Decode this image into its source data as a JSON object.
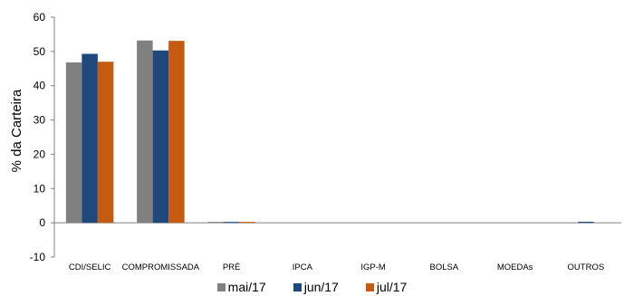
{
  "chart_data": {
    "type": "bar",
    "ylabel": "% da Carteira",
    "ylim": [
      -10,
      60
    ],
    "yticks": [
      -10,
      0,
      10,
      20,
      30,
      40,
      50,
      60
    ],
    "categories": [
      "CDI/SELIC",
      "COMPROMISSADA",
      "PRÉ",
      "IPCA",
      "IGP-M",
      "BOLSA",
      "MOEDAs",
      "OUTROS"
    ],
    "series": [
      {
        "name": "mai/17",
        "color": "#808080",
        "values": [
          46.8,
          53.2,
          0.1,
          0.0,
          0.0,
          0.0,
          0.0,
          0.0
        ]
      },
      {
        "name": "jun/17",
        "color": "#1f497d",
        "values": [
          49.3,
          50.3,
          0.1,
          0.0,
          0.0,
          0.0,
          0.0,
          0.3
        ]
      },
      {
        "name": "jul/17",
        "color": "#c55a11",
        "values": [
          47.0,
          53.1,
          0.1,
          0.0,
          0.0,
          0.0,
          0.0,
          0.0
        ]
      }
    ],
    "legend_position": "bottom",
    "grid": false
  }
}
